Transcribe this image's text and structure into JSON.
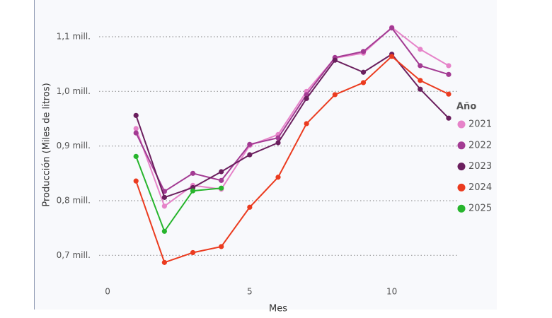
{
  "chart_data": {
    "type": "line",
    "x_label": "Mes",
    "y_label": "Producción (Miles de litros)",
    "legend_title": "Año",
    "x": [
      1,
      2,
      3,
      4,
      5,
      6,
      7,
      8,
      9,
      10,
      11,
      12
    ],
    "series": [
      {
        "name": "2021",
        "color": "#e683c9",
        "values": [
          932000,
          790000,
          828000,
          821000,
          901000,
          921000,
          1000000,
          1061000,
          1070000,
          1117000,
          1077000,
          1047000
        ]
      },
      {
        "name": "2022",
        "color": "#a33b93",
        "values": [
          924000,
          817000,
          850000,
          837000,
          903000,
          915000,
          994000,
          1062000,
          1073000,
          1116000,
          1047000,
          1031000
        ]
      },
      {
        "name": "2023",
        "color": "#6b1f5e",
        "values": [
          956000,
          806000,
          824000,
          853000,
          884000,
          906000,
          987000,
          1057000,
          1035000,
          1068000,
          1004000,
          951000
        ]
      },
      {
        "name": "2024",
        "color": "#eb3b1f",
        "values": [
          836000,
          687000,
          705000,
          716000,
          788000,
          843000,
          941000,
          994000,
          1016000,
          1064000,
          1020000,
          995000
        ]
      },
      {
        "name": "2025",
        "color": "#27b52d",
        "values": [
          881000,
          744000,
          818000,
          823000,
          null,
          null,
          null,
          null,
          null,
          null,
          null,
          null
        ]
      }
    ],
    "xlim": [
      -0.3,
      12.3
    ],
    "xticks": [
      0,
      5,
      10
    ],
    "ylim": [
      650000,
      1150000
    ],
    "yticks": [
      {
        "value": 700000,
        "label": "0,7 mill."
      },
      {
        "value": 800000,
        "label": "0,8 mill."
      },
      {
        "value": 900000,
        "label": "0,9 mill."
      },
      {
        "value": 1000000,
        "label": "1,0 mill."
      },
      {
        "value": 1100000,
        "label": "1,1 mill."
      }
    ],
    "grid": true,
    "legend_position": "right"
  }
}
